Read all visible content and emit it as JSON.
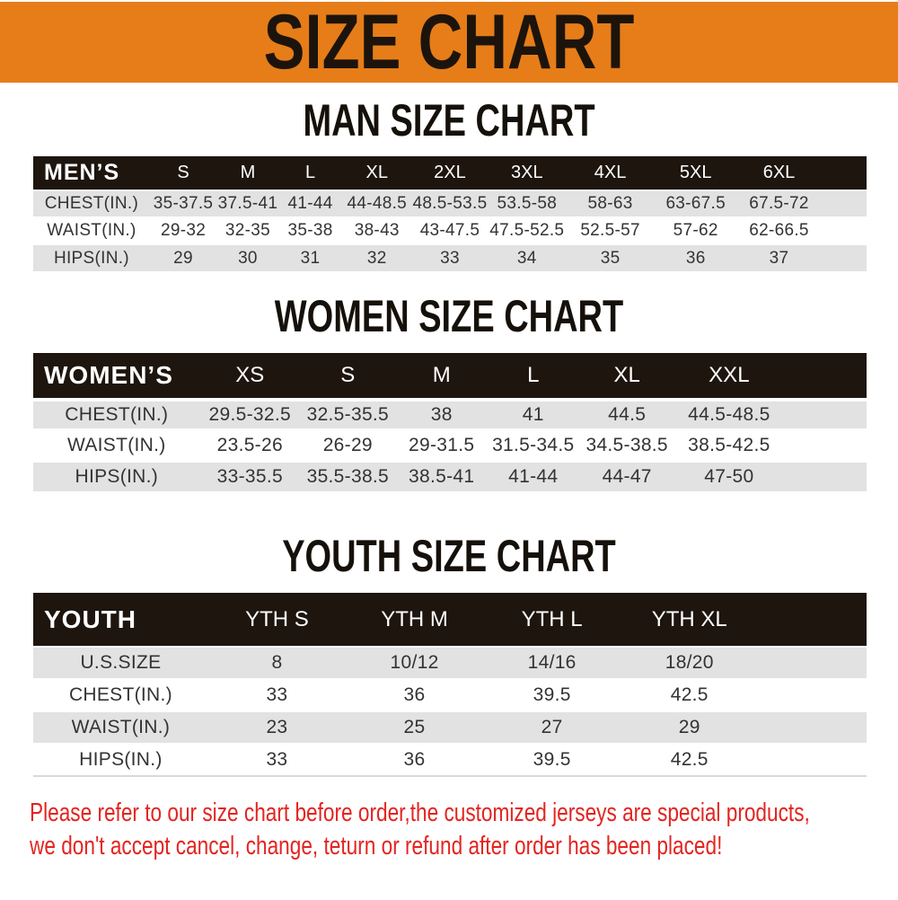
{
  "banner": {
    "title": "SIZE CHART"
  },
  "sections": [
    {
      "id": "man",
      "title": "MAN SIZE CHART",
      "header": [
        "MEN’S",
        "S",
        "M",
        "L",
        "XL",
        "2XL",
        "3XL",
        "4XL",
        "5XL",
        "6XL"
      ],
      "rows": [
        {
          "label": "CHEST(IN.)",
          "values": [
            "35-37.5",
            "37.5-41",
            "41-44",
            "44-48.5",
            "48.5-53.5",
            "53.5-58",
            "58-63",
            "63-67.5",
            "67.5-72"
          ]
        },
        {
          "label": "WAIST(IN.)",
          "values": [
            "29-32",
            "32-35",
            "35-38",
            "38-43",
            "43-47.5",
            "47.5-52.5",
            "52.5-57",
            "57-62",
            "62-66.5"
          ]
        },
        {
          "label": "HIPS(IN.)",
          "values": [
            "29",
            "30",
            "31",
            "32",
            "33",
            "34",
            "35",
            "36",
            "37"
          ]
        }
      ]
    },
    {
      "id": "women",
      "title": "WOMEN SIZE CHART",
      "header": [
        "WOMEN’S",
        "XS",
        "S",
        "M",
        "L",
        "XL",
        "XXL"
      ],
      "rows": [
        {
          "label": "CHEST(IN.)",
          "values": [
            "29.5-32.5",
            "32.5-35.5",
            "38",
            "41",
            "44.5",
            "44.5-48.5"
          ]
        },
        {
          "label": "WAIST(IN.)",
          "values": [
            "23.5-26",
            "26-29",
            "29-31.5",
            "31.5-34.5",
            "34.5-38.5",
            "38.5-42.5"
          ]
        },
        {
          "label": "HIPS(IN.)",
          "values": [
            "33-35.5",
            "35.5-38.5",
            "38.5-41",
            "41-44",
            "44-47",
            "47-50"
          ]
        }
      ]
    },
    {
      "id": "youth",
      "title": "YOUTH SIZE CHART",
      "header": [
        "YOUTH",
        "YTH S",
        "YTH M",
        "YTH L",
        "YTH XL"
      ],
      "rows": [
        {
          "label": "U.S.SIZE",
          "values": [
            "8",
            "10/12",
            "14/16",
            "18/20"
          ]
        },
        {
          "label": "CHEST(IN.)",
          "values": [
            "33",
            "36",
            "39.5",
            "42.5"
          ]
        },
        {
          "label": "WAIST(IN.)",
          "values": [
            "23",
            "25",
            "27",
            "29"
          ]
        },
        {
          "label": "HIPS(IN.)",
          "values": [
            "33",
            "36",
            "39.5",
            "42.5"
          ]
        }
      ]
    }
  ],
  "footer": {
    "line1": "Please refer to our size chart before order,the customized jerseys are special products,",
    "line2": "we don't accept cancel, change, teturn or refund after order has been placed!"
  },
  "colors": {
    "banner_bg": "#e67d19",
    "table_header_bg": "#1d150e",
    "row_stripe": "#e2e2e2",
    "header_text": "#ffffff",
    "body_text": "#333333",
    "notice_text": "#e32420"
  }
}
